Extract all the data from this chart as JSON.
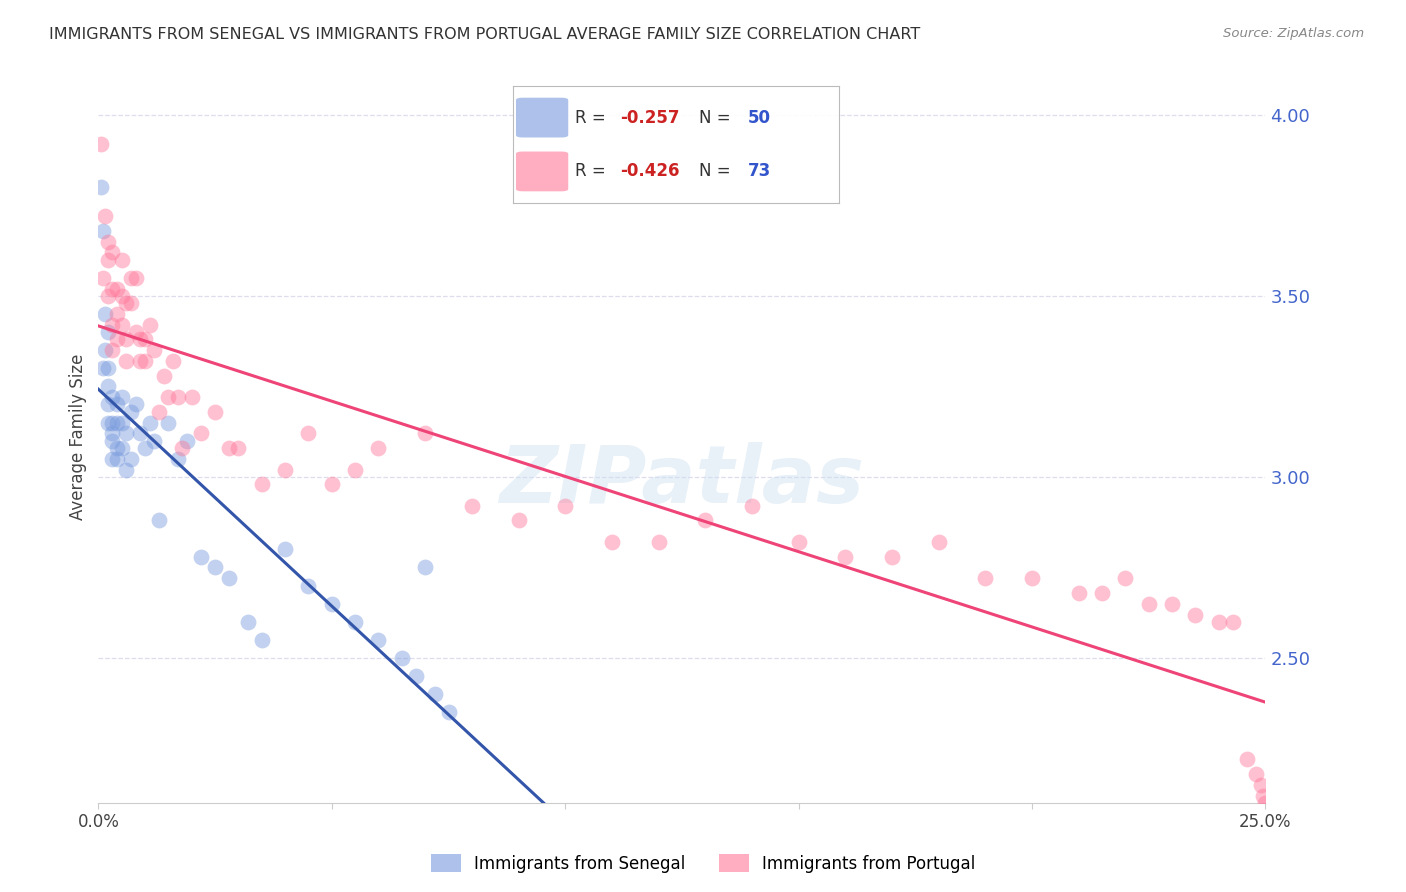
{
  "title": "IMMIGRANTS FROM SENEGAL VS IMMIGRANTS FROM PORTUGAL AVERAGE FAMILY SIZE CORRELATION CHART",
  "source": "Source: ZipAtlas.com",
  "ylabel": "Average Family Size",
  "right_yticks": [
    2.5,
    3.0,
    3.5,
    4.0
  ],
  "xmin": 0.0,
  "xmax": 0.25,
  "ymin": 2.1,
  "ymax": 4.12,
  "watermark": "ZIPatlas",
  "senegal_color": "#7799dd",
  "portugal_color": "#ff7799",
  "senegal_trend_color": "#3355aa",
  "portugal_trend_color": "#ee4477",
  "senegal_dashed_color": "#aabbdd",
  "senegal_R": -0.257,
  "senegal_N": 50,
  "portugal_R": -0.426,
  "portugal_N": 73,
  "legend_label_senegal": "Immigrants from Senegal",
  "legend_label_portugal": "Immigrants from Portugal",
  "grid_color": "#ddddee",
  "axis_tick_color": "#4466cc",
  "title_color": "#333333",
  "source_color": "#888888",
  "senegal_points_x": [
    0.0005,
    0.001,
    0.001,
    0.0015,
    0.0015,
    0.002,
    0.002,
    0.002,
    0.002,
    0.002,
    0.003,
    0.003,
    0.003,
    0.003,
    0.003,
    0.004,
    0.004,
    0.004,
    0.004,
    0.005,
    0.005,
    0.005,
    0.006,
    0.006,
    0.007,
    0.007,
    0.008,
    0.009,
    0.01,
    0.011,
    0.012,
    0.013,
    0.015,
    0.017,
    0.019,
    0.022,
    0.025,
    0.028,
    0.032,
    0.035,
    0.04,
    0.045,
    0.05,
    0.055,
    0.06,
    0.065,
    0.068,
    0.07,
    0.072,
    0.075
  ],
  "senegal_points_y": [
    3.8,
    3.68,
    3.3,
    3.45,
    3.35,
    3.4,
    3.3,
    3.25,
    3.2,
    3.15,
    3.22,
    3.15,
    3.12,
    3.1,
    3.05,
    3.15,
    3.08,
    3.05,
    3.2,
    3.22,
    3.15,
    3.08,
    3.12,
    3.02,
    3.18,
    3.05,
    3.2,
    3.12,
    3.08,
    3.15,
    3.1,
    2.88,
    3.15,
    3.05,
    3.1,
    2.78,
    2.75,
    2.72,
    2.6,
    2.55,
    2.8,
    2.7,
    2.65,
    2.6,
    2.55,
    2.5,
    2.45,
    2.75,
    2.4,
    2.35
  ],
  "portugal_points_x": [
    0.0005,
    0.001,
    0.0015,
    0.002,
    0.002,
    0.002,
    0.003,
    0.003,
    0.003,
    0.003,
    0.004,
    0.004,
    0.004,
    0.005,
    0.005,
    0.005,
    0.006,
    0.006,
    0.006,
    0.007,
    0.007,
    0.008,
    0.008,
    0.009,
    0.009,
    0.01,
    0.01,
    0.011,
    0.012,
    0.013,
    0.014,
    0.015,
    0.016,
    0.017,
    0.018,
    0.02,
    0.022,
    0.025,
    0.028,
    0.03,
    0.035,
    0.04,
    0.045,
    0.05,
    0.055,
    0.06,
    0.07,
    0.08,
    0.09,
    0.1,
    0.11,
    0.12,
    0.13,
    0.14,
    0.15,
    0.16,
    0.17,
    0.18,
    0.19,
    0.2,
    0.21,
    0.215,
    0.22,
    0.225,
    0.23,
    0.235,
    0.24,
    0.243,
    0.246,
    0.248,
    0.249,
    0.2495,
    0.2499
  ],
  "portugal_points_y": [
    3.92,
    3.55,
    3.72,
    3.65,
    3.6,
    3.5,
    3.62,
    3.52,
    3.42,
    3.35,
    3.52,
    3.45,
    3.38,
    3.6,
    3.5,
    3.42,
    3.48,
    3.38,
    3.32,
    3.55,
    3.48,
    3.55,
    3.4,
    3.38,
    3.32,
    3.38,
    3.32,
    3.42,
    3.35,
    3.18,
    3.28,
    3.22,
    3.32,
    3.22,
    3.08,
    3.22,
    3.12,
    3.18,
    3.08,
    3.08,
    2.98,
    3.02,
    3.12,
    2.98,
    3.02,
    3.08,
    3.12,
    2.92,
    2.88,
    2.92,
    2.82,
    2.82,
    2.88,
    2.92,
    2.82,
    2.78,
    2.78,
    2.82,
    2.72,
    2.72,
    2.68,
    2.68,
    2.72,
    2.65,
    2.65,
    2.62,
    2.6,
    2.6,
    2.22,
    2.18,
    2.15,
    2.12,
    2.1
  ]
}
